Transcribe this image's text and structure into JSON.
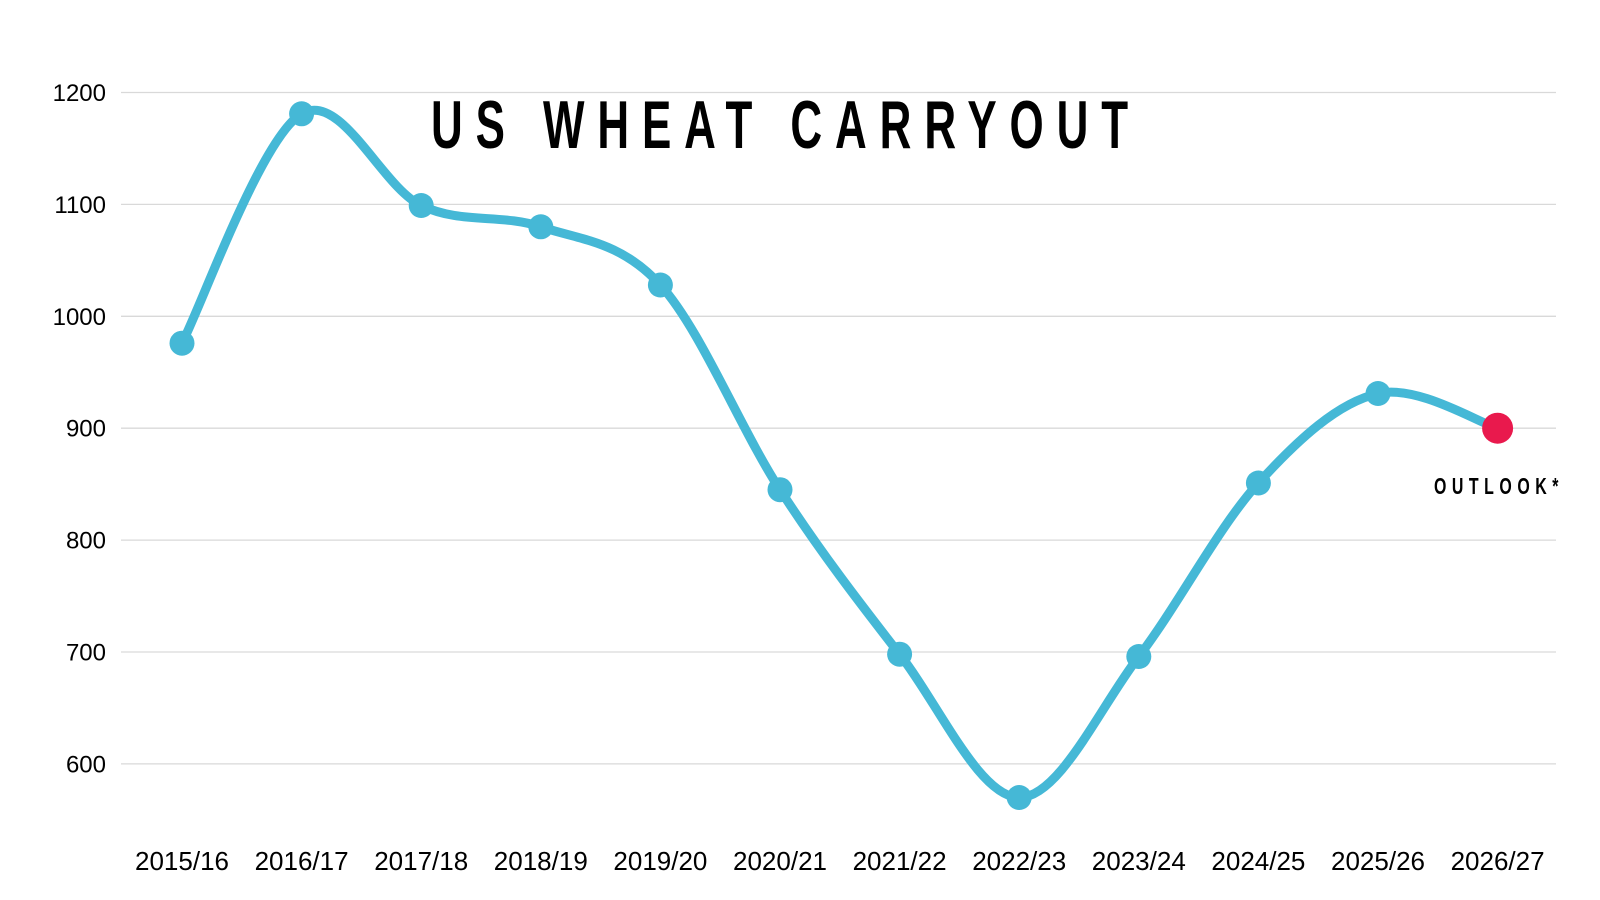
{
  "chart_data": {
    "type": "line",
    "title": "US WHEAT CARRYOUT",
    "categories": [
      "2015/16",
      "2016/17",
      "2017/18",
      "2018/19",
      "2019/20",
      "2020/21",
      "2021/22",
      "2022/23",
      "2023/24",
      "2024/25",
      "2025/26",
      "2026/27"
    ],
    "series": [
      {
        "name": "US wheat carryout",
        "values": [
          976,
          1181,
          1099,
          1080,
          1028,
          845,
          698,
          570,
          696,
          851,
          931,
          900
        ]
      }
    ],
    "yticks": [
      1200,
      1100,
      1000,
      900,
      800,
      700,
      600
    ],
    "ylim": [
      550,
      1210
    ],
    "xlabel": "",
    "ylabel": "",
    "grid": "horizontal",
    "legend": "none",
    "annotation": {
      "text": "OUTLOOK*",
      "applies_to": "2026/27"
    },
    "highlight": {
      "category": "2026/27",
      "value": 900,
      "style": "large-red-dot"
    }
  },
  "colors": {
    "line": "#45B8D6",
    "point": "#45B8D6",
    "outlook_point": "#E9194D",
    "grid": "#D9D9D9",
    "text": "#000000"
  }
}
